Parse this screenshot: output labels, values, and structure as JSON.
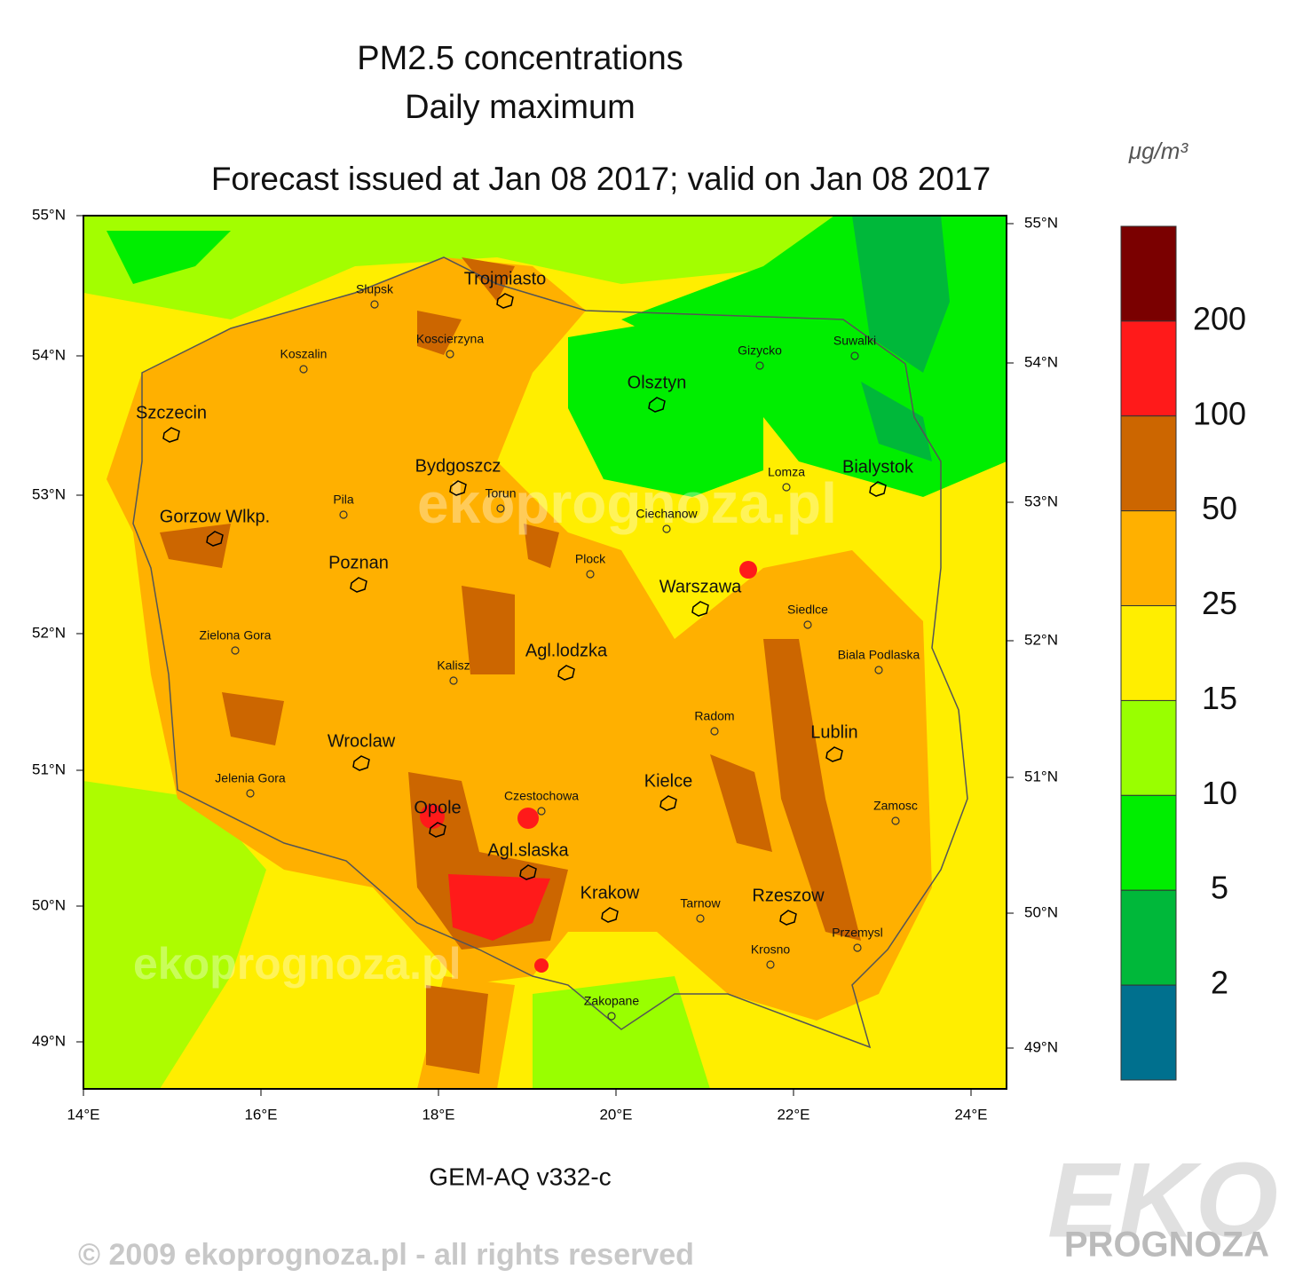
{
  "header": {
    "title": "PM2.5 concentrations",
    "subtitle": "Daily maximum",
    "forecast": "Forecast issued at Jan 08 2017; valid on Jan 08 2017"
  },
  "map": {
    "lat_labels_left": [
      "55°N",
      "54°N",
      "53°N",
      "52°N",
      "51°N",
      "50°N",
      "49°N"
    ],
    "lat_labels_right": [
      "55°N",
      "54°N",
      "53°N",
      "52°N",
      "51°N",
      "50°N",
      "49°N"
    ],
    "lon_labels": [
      "14°E",
      "16°E",
      "18°E",
      "20°E",
      "22°E",
      "24°E"
    ],
    "watermark": "ekoprognoza.pl",
    "cities": [
      "Slupsk",
      "Trojmiasto",
      "Koszalin",
      "Koscierzyna",
      "Gizycko",
      "Suwalki",
      "Olsztyn",
      "Szczecin",
      "Bydgoszcz",
      "Torun",
      "Lomza",
      "Bialystok",
      "Pila",
      "Ciechanow",
      "Gorzow Wlkp.",
      "Poznan",
      "Plock",
      "Warszawa",
      "Siedlce",
      "Zielona Gora",
      "Biala Podlaska",
      "Agl.lodzka",
      "Kalisz",
      "Radom",
      "Lublin",
      "Wroclaw",
      "Kielce",
      "Jelenia Gora",
      "Czestochowa",
      "Zamosc",
      "Opole",
      "Agl.slaska",
      "Krakow",
      "Tarnow",
      "Rzeszow",
      "Przemysl",
      "Krosno",
      "Zakopane"
    ]
  },
  "colorbar": {
    "unit": "μg/m³",
    "levels": [
      200,
      100,
      50,
      25,
      15,
      10,
      5,
      2
    ],
    "colors": [
      "#7a0000",
      "#ff1a1a",
      "#cc6600",
      "#ffb000",
      "#ffee00",
      "#99ff00",
      "#00ee00",
      "#00b83a",
      "#00708e"
    ]
  },
  "footer": {
    "model": "GEM-AQ v332-c",
    "copyright": "© 2009 ekoprognoza.pl - all rights reserved",
    "logo": "EKO",
    "logo_sub": "PROGNOZA"
  }
}
